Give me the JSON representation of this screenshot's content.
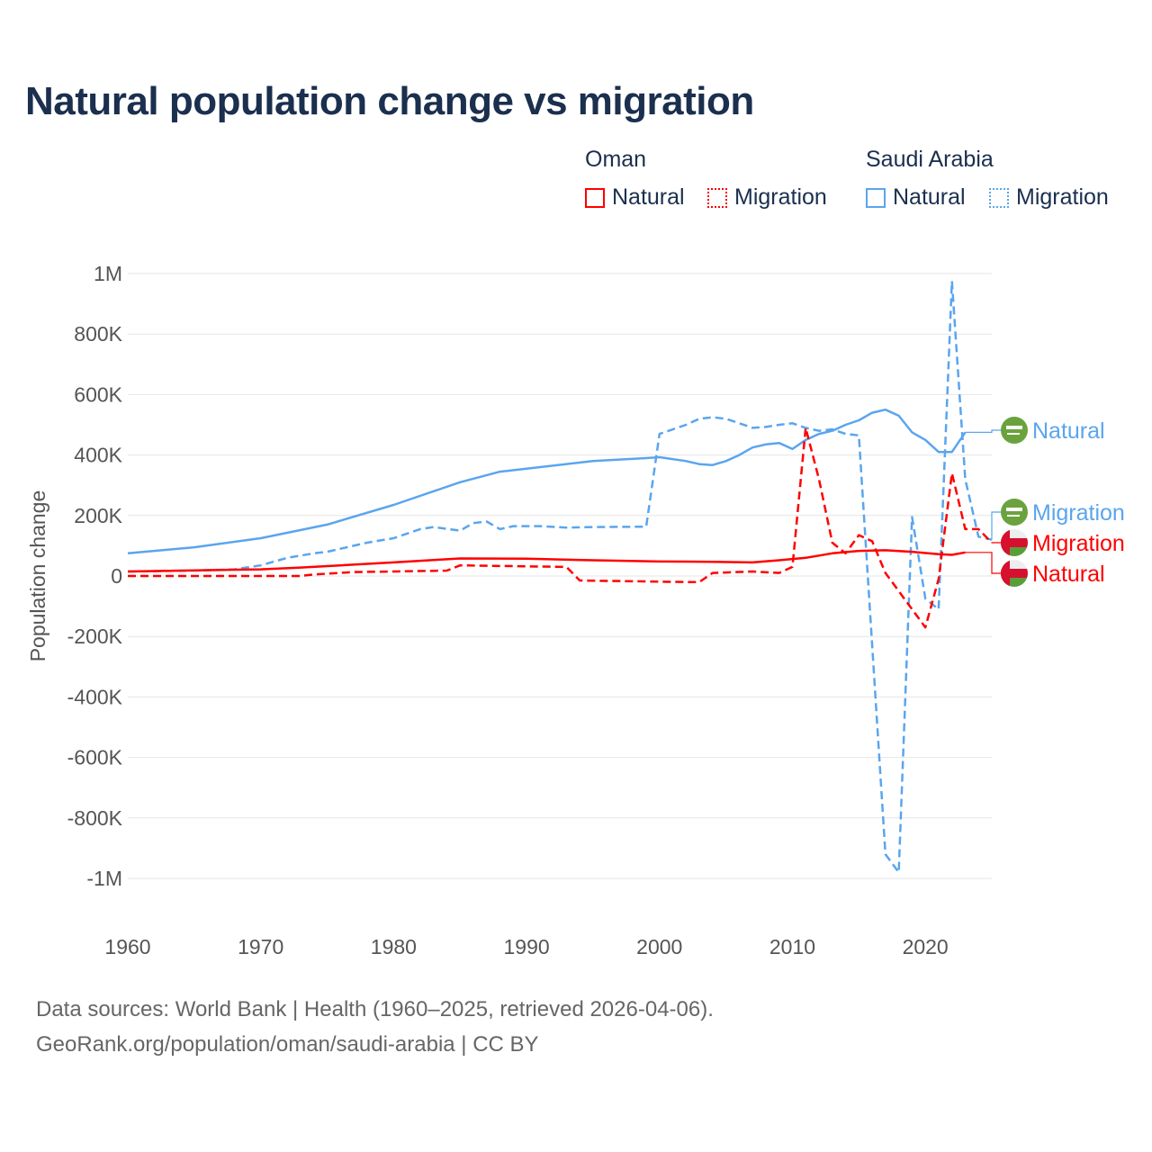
{
  "title": "Natural population change vs migration",
  "legend": {
    "groups": [
      {
        "name": "Oman",
        "color": "#ff0000",
        "items": [
          {
            "label": "Natural",
            "style": "solid"
          },
          {
            "label": "Migration",
            "style": "dotted"
          }
        ]
      },
      {
        "name": "Saudi Arabia",
        "color": "#5aa5ee",
        "items": [
          {
            "label": "Natural",
            "style": "solid"
          },
          {
            "label": "Migration",
            "style": "dotted"
          }
        ]
      }
    ]
  },
  "sources": {
    "line1": "Data sources: World Bank | Health (1960–2025, retrieved 2026-04-06).",
    "line2": "GeoRank.org/population/oman/saudi-arabia | CC BY"
  },
  "chart_data": {
    "type": "line",
    "title": "Natural population change vs migration",
    "xlabel": "",
    "ylabel": "Population change",
    "xlim": [
      1960,
      2025
    ],
    "ylim": [
      -1000000,
      1000000
    ],
    "xticks": [
      1960,
      1970,
      1980,
      1990,
      2000,
      2010,
      2020
    ],
    "xtick_labels": [
      "1960",
      "1970",
      "1980",
      "1990",
      "2000",
      "2010",
      "2020"
    ],
    "yticks": [
      1000000,
      800000,
      600000,
      400000,
      200000,
      0,
      -200000,
      -400000,
      -600000,
      -800000,
      -1000000
    ],
    "ytick_labels": [
      "1M",
      "800K",
      "600K",
      "400K",
      "200K",
      "0",
      "-200K",
      "-400K",
      "-600K",
      "-800K",
      "-1M"
    ],
    "grid": true,
    "series": [
      {
        "name": "Saudi Arabia Natural",
        "end_label": "Natural",
        "color": "#5aa5ee",
        "dash": false,
        "flag": "saudi-arabia",
        "x": [
          1960,
          1965,
          1970,
          1975,
          1980,
          1985,
          1988,
          1990,
          1995,
          1999,
          2000,
          2002,
          2003,
          2004,
          2005,
          2006,
          2007,
          2008,
          2009,
          2010,
          2011,
          2012,
          2013,
          2014,
          2015,
          2016,
          2017,
          2018,
          2019,
          2020,
          2021,
          2022,
          2023
        ],
        "y": [
          75000,
          95000,
          125000,
          170000,
          235000,
          310000,
          345000,
          355000,
          380000,
          390000,
          393000,
          380000,
          370000,
          367000,
          380000,
          400000,
          425000,
          435000,
          440000,
          420000,
          450000,
          470000,
          480000,
          500000,
          515000,
          540000,
          550000,
          530000,
          475000,
          450000,
          410000,
          410000,
          475000
        ]
      },
      {
        "name": "Saudi Arabia Migration",
        "end_label": "Migration",
        "color": "#5aa5ee",
        "dash": true,
        "flag": "saudi-arabia",
        "x": [
          1960,
          1965,
          1968,
          1970,
          1972,
          1974,
          1975,
          1978,
          1980,
          1982,
          1983,
          1985,
          1986,
          1987,
          1988,
          1989,
          1991,
          1993,
          1995,
          1999,
          2000,
          2002,
          2003,
          2004,
          2005,
          2006,
          2007,
          2008,
          2009,
          2010,
          2011,
          2012,
          2013,
          2014,
          2015,
          2017,
          2018,
          2019,
          2020,
          2021,
          2022,
          2023,
          2024,
          2025
        ],
        "y": [
          15000,
          18000,
          22000,
          35000,
          60000,
          75000,
          80000,
          110000,
          125000,
          155000,
          162000,
          150000,
          175000,
          180000,
          155000,
          165000,
          165000,
          160000,
          162000,
          163000,
          470000,
          500000,
          520000,
          525000,
          520000,
          505000,
          490000,
          493000,
          500000,
          505000,
          490000,
          480000,
          485000,
          470000,
          465000,
          -920000,
          -980000,
          195000,
          -75000,
          -110000,
          975000,
          320000,
          130000,
          120000
        ]
      },
      {
        "name": "Oman Migration",
        "end_label": "Migration",
        "color": "#ff0000",
        "dash": true,
        "flag": "oman",
        "x": [
          1960,
          1973,
          1974,
          1977,
          1980,
          1984,
          1985,
          1993,
          1994,
          2002,
          2003,
          2004,
          2007,
          2009,
          2010,
          2011,
          2012,
          2013,
          2014,
          2015,
          2016,
          2017,
          2020,
          2021,
          2022,
          2023,
          2024,
          2025
        ],
        "y": [
          0,
          0,
          5000,
          13000,
          15000,
          18000,
          35000,
          30000,
          -15000,
          -20000,
          -20000,
          10000,
          15000,
          10000,
          30000,
          490000,
          320000,
          110000,
          75000,
          135000,
          115000,
          10000,
          -170000,
          -10000,
          340000,
          155000,
          155000,
          110000
        ]
      },
      {
        "name": "Oman Natural",
        "end_label": "Natural",
        "color": "#ff0000",
        "dash": false,
        "flag": "oman",
        "x": [
          1960,
          1970,
          1973,
          1980,
          1985,
          1990,
          1995,
          2000,
          2004,
          2007,
          2009,
          2011,
          2013,
          2015,
          2017,
          2019,
          2021,
          2022,
          2023
        ],
        "y": [
          15000,
          22000,
          28000,
          45000,
          58000,
          57000,
          52000,
          48000,
          47000,
          45000,
          52000,
          60000,
          75000,
          83000,
          85000,
          80000,
          72000,
          70000,
          78000
        ]
      }
    ]
  }
}
